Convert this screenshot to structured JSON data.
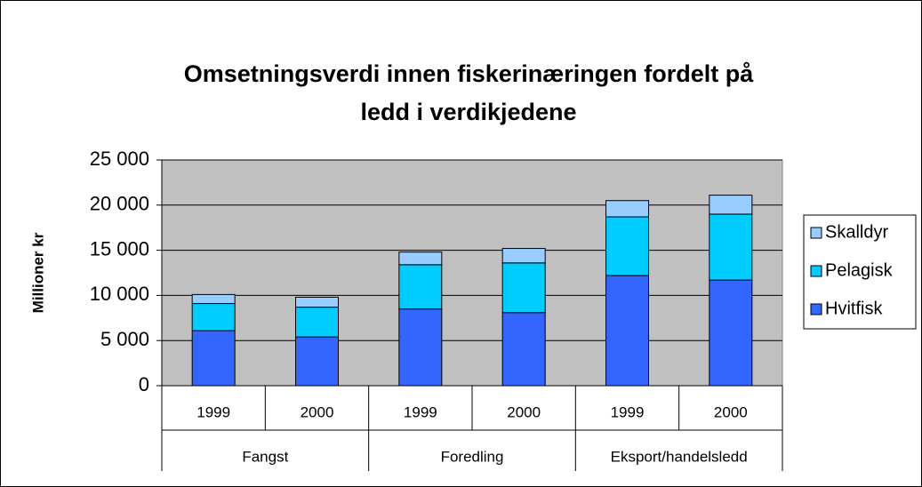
{
  "chart_data": {
    "type": "stacked_bar",
    "title": [
      "Omsetningsverdi innen fiskerinæringen fordelt på",
      "ledd i verdikjedene"
    ],
    "y_label": "Millioner kr",
    "categories": [
      "1999",
      "2000",
      "1999",
      "2000",
      "1999",
      "2000"
    ],
    "groups": [
      "Fangst",
      "Foredling",
      "Eksport/handelsledd"
    ],
    "series": [
      {
        "name": "Hvitfisk",
        "color": "#3366ff",
        "values": [
          6100,
          5400,
          8500,
          8100,
          12200,
          11700
        ]
      },
      {
        "name": "Pelagisk",
        "color": "#00ccff",
        "values": [
          3000,
          3300,
          4900,
          5500,
          6500,
          7300
        ]
      },
      {
        "name": "Skalldyr",
        "color": "#99ccff",
        "values": [
          1000,
          1100,
          1400,
          1600,
          1800,
          2100
        ]
      }
    ],
    "ylim": [
      0,
      25000
    ],
    "yticks": [
      0,
      {
        "value": 5000,
        "label": "5 000"
      },
      {
        "value": 10000,
        "label": "10 000"
      },
      {
        "value": 15000,
        "label": "15 000"
      },
      {
        "value": 20000,
        "label": "20 000"
      },
      {
        "value": 25000,
        "label": "25 000"
      }
    ],
    "grid": true,
    "legend": "right"
  }
}
